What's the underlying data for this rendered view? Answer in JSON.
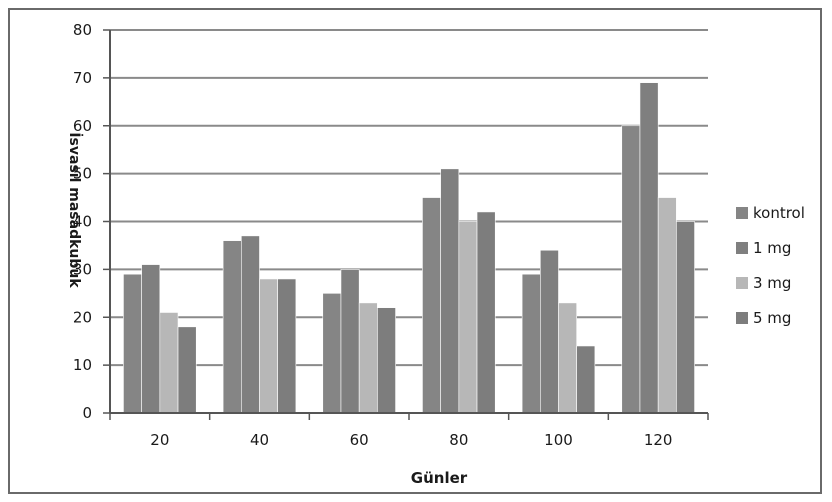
{
  "chart_data": {
    "type": "bar",
    "xlabel": "Günler",
    "ylabel": "İsvasıl masadkubuk",
    "categories": [
      "20",
      "40",
      "60",
      "80",
      "100",
      "120"
    ],
    "ylim": [
      0,
      80
    ],
    "yticks": [
      0,
      10,
      20,
      30,
      40,
      50,
      60,
      70,
      80
    ],
    "grid": true,
    "legend_position": "right",
    "series": [
      {
        "name": "kontrol",
        "color": "#858585",
        "values": [
          29,
          36,
          25,
          45,
          29,
          60
        ]
      },
      {
        "name": "1 mg",
        "color": "#7f7f7f",
        "values": [
          31,
          37,
          30,
          51,
          34,
          69
        ]
      },
      {
        "name": "3 mg",
        "color": "#b7b7b7",
        "values": [
          21,
          28,
          23,
          40,
          23,
          45
        ]
      },
      {
        "name": "5 mg",
        "color": "#7d7d7d",
        "values": [
          18,
          28,
          22,
          42,
          14,
          40
        ]
      }
    ]
  }
}
